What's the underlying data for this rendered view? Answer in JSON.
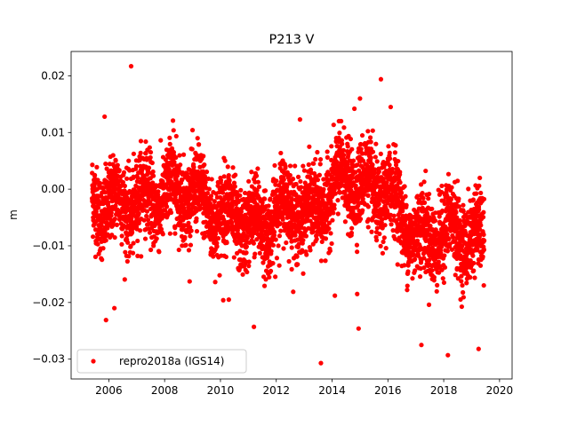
{
  "chart_data": {
    "type": "scatter",
    "title": "P213 V",
    "xlabel": "",
    "ylabel": "m",
    "xlim": [
      2004.65,
      2020.45
    ],
    "ylim": [
      -0.0335,
      0.0243
    ],
    "x_ticks": [
      2006,
      2008,
      2010,
      2012,
      2014,
      2016,
      2018,
      2020
    ],
    "x_tick_labels": [
      "2006",
      "2008",
      "2010",
      "2012",
      "2014",
      "2016",
      "2018",
      "2020"
    ],
    "y_ticks": [
      -0.03,
      -0.02,
      -0.01,
      0.0,
      0.01,
      0.02
    ],
    "y_tick_labels": [
      "−0.03",
      "−0.02",
      "−0.01",
      "0.00",
      "0.01",
      "0.02"
    ],
    "grid": false,
    "legend_position": "lower-left",
    "series": [
      {
        "name": "repro2018a (IGS14)",
        "color": "#ff0000",
        "marker": "circle",
        "x_range": [
          2005.4,
          2019.45
        ],
        "trend_points": [
          [
            2005.4,
            -0.002
          ],
          [
            2006.0,
            -0.003
          ],
          [
            2007.0,
            -0.002
          ],
          [
            2008.0,
            -0.001
          ],
          [
            2008.8,
            0.0
          ],
          [
            2009.5,
            -0.003
          ],
          [
            2010.2,
            -0.005
          ],
          [
            2011.0,
            -0.006
          ],
          [
            2011.5,
            -0.007
          ],
          [
            2012.0,
            -0.004
          ],
          [
            2012.7,
            -0.003
          ],
          [
            2013.3,
            -0.005
          ],
          [
            2013.8,
            -0.001
          ],
          [
            2014.5,
            0.002
          ],
          [
            2015.0,
            0.001
          ],
          [
            2015.6,
            -0.001
          ],
          [
            2016.0,
            0.0
          ],
          [
            2016.5,
            -0.005
          ],
          [
            2017.0,
            -0.008
          ],
          [
            2017.4,
            -0.009
          ],
          [
            2018.0,
            -0.007
          ],
          [
            2018.5,
            -0.008
          ],
          [
            2019.0,
            -0.008
          ],
          [
            2019.45,
            -0.01
          ]
        ],
        "scatter_sd": 0.0042,
        "outliers": [
          [
            2006.8,
            0.0217
          ],
          [
            2015.75,
            0.0194
          ],
          [
            2013.6,
            -0.0307
          ],
          [
            2018.15,
            -0.0293
          ],
          [
            2017.2,
            -0.0275
          ],
          [
            2019.25,
            -0.0282
          ],
          [
            2014.95,
            -0.0246
          ],
          [
            2011.2,
            -0.0243
          ],
          [
            2005.9,
            -0.0231
          ],
          [
            2006.2,
            -0.021
          ],
          [
            2010.3,
            -0.0195
          ],
          [
            2010.1,
            -0.0196
          ],
          [
            2014.1,
            -0.0188
          ],
          [
            2014.9,
            -0.0185
          ],
          [
            2008.3,
            0.0121
          ],
          [
            2012.85,
            0.0123
          ],
          [
            2014.8,
            0.0142
          ],
          [
            2015.0,
            0.016
          ],
          [
            2005.85,
            0.0128
          ],
          [
            2016.1,
            0.0145
          ]
        ]
      }
    ]
  }
}
